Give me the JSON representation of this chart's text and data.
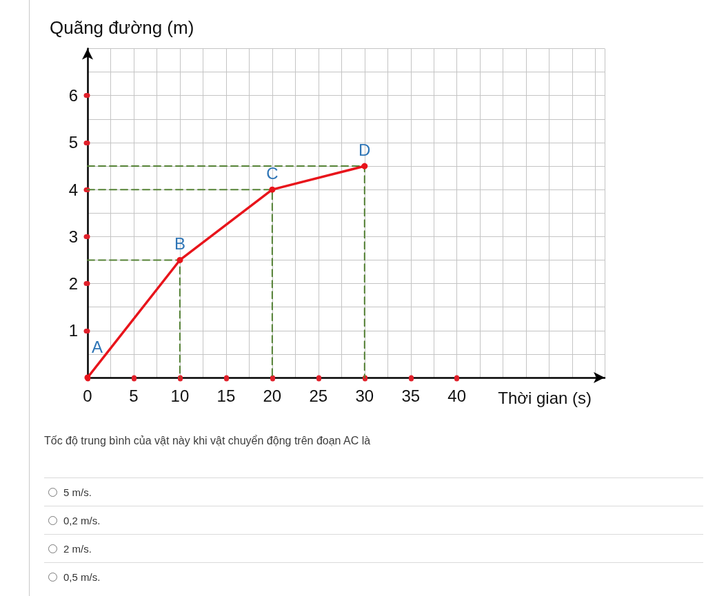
{
  "chart_data": {
    "type": "line",
    "xlabel": "Thời gian (s)",
    "ylabel": "Quãng đường (m)",
    "series": [
      {
        "x": [
          0,
          10,
          10
        ],
        "values": [
          2.5,
          2.5,
          0
        ],
        "color": "#548235",
        "line_style": "dashed",
        "marker": "none"
      },
      {
        "x": [
          0,
          20,
          20
        ],
        "values": [
          4,
          4,
          0
        ],
        "color": "#548235",
        "line_style": "dashed",
        "marker": "none"
      },
      {
        "x": [
          0,
          30,
          30
        ],
        "values": [
          4.5,
          4.5,
          0
        ],
        "color": "#548235",
        "line_style": "dashed",
        "marker": "none"
      },
      {
        "x": [
          0,
          10,
          20,
          30
        ],
        "values": [
          0,
          2.5,
          4,
          4.5
        ],
        "color": "#e8141b"
      }
    ],
    "marker": "circle",
    "line_style": "solid",
    "xlim": [
      0,
      56
    ],
    "ylim": [
      0,
      7
    ],
    "xticks": [
      0,
      5,
      10,
      15,
      20,
      25,
      30,
      35,
      40
    ],
    "yticks": [
      1,
      2,
      3,
      4,
      5,
      6
    ],
    "grid": true,
    "annotations": [
      {
        "text": "A",
        "x": 0,
        "y": 0
      },
      {
        "text": "B",
        "x": 10,
        "y": 2.5
      },
      {
        "text": "C",
        "x": 20,
        "y": 4
      },
      {
        "text": "D",
        "x": 30,
        "y": 4.5
      },
      "Tốc độ trung bình của vật này khi vật chuyển động trên đoạn AC là",
      "5 m/s.",
      "0,2 m/s.",
      "2 m/s.",
      "0,5 m/s."
    ]
  }
}
